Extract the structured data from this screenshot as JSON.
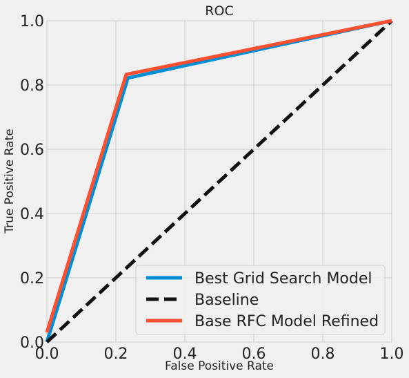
{
  "chart_data": {
    "type": "line",
    "title": "ROC",
    "xlabel": "False Positive Rate",
    "ylabel": "True Positive Rate",
    "xlim": [
      0.0,
      1.0
    ],
    "ylim": [
      0.0,
      1.0
    ],
    "x_ticks": [
      "0.0",
      "0.2",
      "0.4",
      "0.6",
      "0.8",
      "1.0"
    ],
    "y_ticks": [
      "0.0",
      "0.2",
      "0.4",
      "0.6",
      "0.8",
      "1.0"
    ],
    "grid": true,
    "legend_position": "lower-right",
    "series": [
      {
        "name": "Best Grid Search Model",
        "color": "#008fd5",
        "dash": "solid",
        "x": [
          0.0,
          0.235,
          1.0
        ],
        "y": [
          0.0,
          0.822,
          1.0
        ]
      },
      {
        "name": "Baseline",
        "color": "#111111",
        "dash": "dashed",
        "x": [
          0.0,
          1.0
        ],
        "y": [
          0.0,
          1.0
        ]
      },
      {
        "name": "Base RFC Model Refined",
        "color": "#fc4f30",
        "dash": "solid",
        "x": [
          0.0,
          0.23,
          1.0
        ],
        "y": [
          0.03,
          0.833,
          1.0
        ]
      }
    ]
  }
}
